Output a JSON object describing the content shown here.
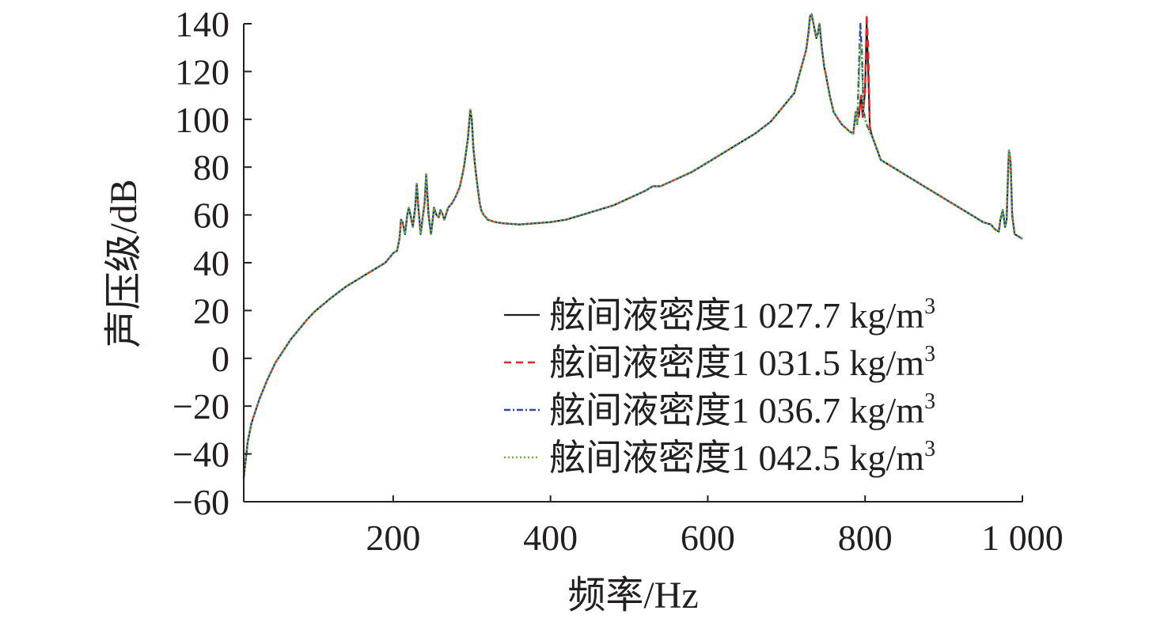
{
  "chart_data": {
    "type": "line",
    "xlabel": "频率/Hz",
    "ylabel": "声压级/dB",
    "xlim": [
      10,
      1000
    ],
    "ylim": [
      -60,
      140
    ],
    "xticks": [
      200,
      400,
      600,
      800,
      1000
    ],
    "xtick_labels": [
      "200",
      "400",
      "600",
      "800",
      "1 000"
    ],
    "yticks": [
      -60,
      -40,
      -20,
      0,
      20,
      40,
      60,
      80,
      100,
      120,
      140
    ],
    "ytick_labels": [
      "−60",
      "−40",
      "−20",
      "0",
      "20",
      "40",
      "60",
      "80",
      "100",
      "120",
      "140"
    ],
    "grid": false,
    "legend_position": "bottom-right",
    "base_curve": {
      "x": [
        10,
        15,
        20,
        30,
        40,
        50,
        60,
        70,
        80,
        90,
        100,
        120,
        140,
        160,
        180,
        190,
        195,
        200,
        205,
        208,
        210,
        212,
        215,
        218,
        220,
        222,
        225,
        228,
        230,
        232,
        235,
        238,
        240,
        242,
        245,
        248,
        250,
        252,
        255,
        258,
        260,
        262,
        265,
        268,
        270,
        275,
        280,
        285,
        290,
        295,
        298,
        300,
        302,
        305,
        308,
        310,
        312,
        315,
        318,
        320,
        330,
        340,
        360,
        380,
        400,
        420,
        440,
        460,
        480,
        500,
        520,
        530,
        540,
        560,
        580,
        600,
        620,
        640,
        660,
        680,
        690,
        700,
        710,
        715,
        720,
        725,
        728,
        730,
        732,
        735,
        738,
        740,
        742,
        745,
        748,
        750,
        755,
        760,
        770,
        780,
        785,
        788,
        790,
        792,
        795,
        797,
        800,
        803,
        806,
        810,
        820,
        840,
        860,
        880,
        900,
        920,
        940,
        950,
        960,
        965,
        970,
        972,
        975,
        978,
        980,
        982,
        983,
        985,
        987,
        990,
        1000
      ],
      "y": [
        -50,
        -35,
        -27,
        -17,
        -9,
        -2,
        3,
        8,
        12,
        16,
        19.5,
        25,
        30,
        34,
        38,
        40,
        42,
        44,
        45,
        50,
        58,
        57,
        52,
        60,
        63,
        60,
        55,
        63,
        73,
        63,
        52,
        60,
        65,
        77,
        60,
        52,
        57,
        63,
        60,
        59,
        62,
        61,
        58,
        61,
        63,
        65,
        68,
        72,
        80,
        92,
        104,
        100,
        88,
        78,
        70,
        65,
        62,
        60,
        59,
        58,
        57,
        56.5,
        56,
        56.5,
        57,
        58,
        60,
        62,
        64,
        67,
        70,
        72,
        72,
        75,
        78,
        82,
        86,
        90,
        94,
        99,
        103,
        107,
        111,
        117,
        123,
        129,
        136,
        143,
        144,
        139,
        134,
        136,
        140,
        130,
        122,
        119,
        110,
        103,
        98,
        95,
        94,
        103,
        103,
        101,
        99,
        96,
        93,
        90,
        88,
        86,
        83,
        79,
        75,
        71,
        67,
        63,
        59,
        57,
        56,
        54,
        53,
        58,
        62,
        55,
        58,
        80,
        87,
        82,
        60,
        52,
        50
      ]
    },
    "series": [
      {
        "name": "舷间液密度1 027.7 kg/m³",
        "name_base": "舷间液密度1 027.7 kg/m",
        "name_sup": "3",
        "color": "#231f20",
        "dash": "none",
        "width": 2.2,
        "spike": {
          "x": [
            795,
            797,
            800,
            802,
            804,
            806,
            808,
            810
          ],
          "y": [
            110,
            101,
            112,
            140,
            120,
            97,
            94,
            92
          ]
        }
      },
      {
        "name": "舷间液密度1 031.5 kg/m³",
        "name_base": "舷间液密度1 031.5 kg/m",
        "name_sup": "3",
        "color": "#e8262a",
        "dash": "9,6",
        "width": 2.4,
        "spike": {
          "x": [
            795,
            797,
            800,
            802,
            804,
            806,
            808,
            810
          ],
          "y": [
            110,
            101,
            112,
            144,
            130,
            97,
            94,
            92
          ]
        }
      },
      {
        "name": "舷间液密度1 036.7 kg/m³",
        "name_base": "舷间液密度1 036.7 kg/m",
        "name_sup": "3",
        "color": "#2e4a9b",
        "dash": "8,3,2,3",
        "width": 2.4,
        "spike": {
          "x": [
            790,
            792,
            794,
            796,
            798,
            800,
            803,
            806,
            810
          ],
          "y": [
            98,
            120,
            140,
            128,
            104,
            100,
            97,
            95,
            92
          ]
        }
      },
      {
        "name": "舷间液密度1 042.5 kg/m³",
        "name_base": "舷间液密度1 042.5 kg/m",
        "name_sup": "3",
        "color": "#66b53f",
        "dash": "2,3",
        "width": 2.6,
        "spike": {
          "x": [
            790,
            792,
            794,
            796,
            798,
            800,
            803,
            806,
            810
          ],
          "y": [
            98,
            114,
            132,
            124,
            104,
            100,
            97,
            95,
            92
          ]
        }
      }
    ]
  }
}
